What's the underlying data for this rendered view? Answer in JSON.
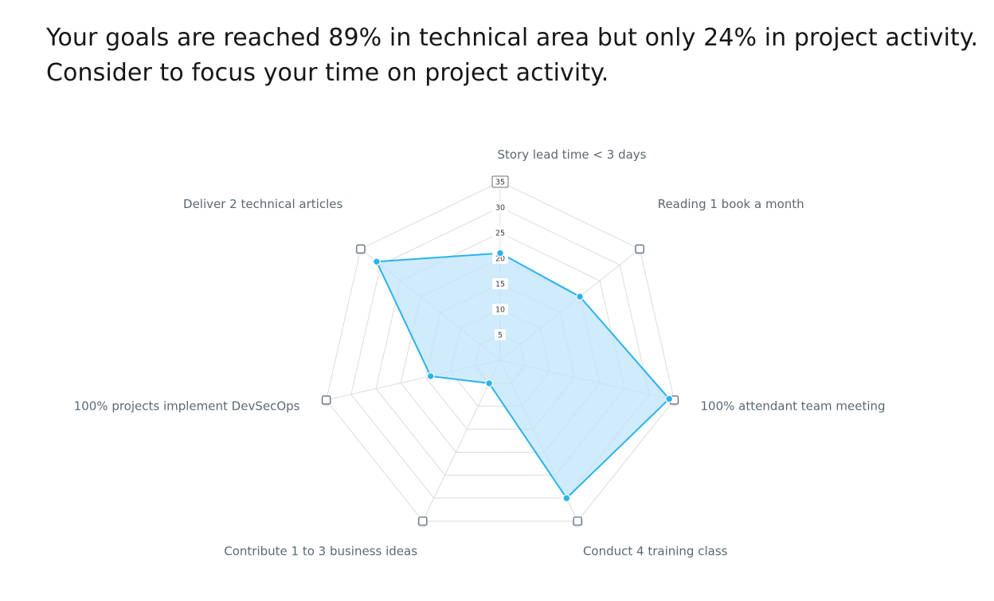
{
  "headline": {
    "line1": "Your goals are reached 89% in technical area but only 24% in project activity.",
    "line2": "Consider to focus your time on project activity."
  },
  "chart_data": {
    "type": "radar",
    "categories": [
      "Story lead time < 3 days",
      "Reading 1 book a month",
      "100% attendant team meeting",
      "Conduct 4 training class",
      "Contribute 1 to 3 business ideas",
      "100% projects implement DevSecOps",
      "Deliver 2 technical articles"
    ],
    "series": [
      {
        "values": [
          21,
          20,
          34,
          30,
          5,
          14,
          31
        ]
      }
    ],
    "rlim": [
      0,
      35
    ],
    "ticks": [
      5,
      10,
      15,
      20,
      25,
      30,
      35
    ],
    "tick_labels": [
      "5",
      "10",
      "15",
      "20",
      "25",
      "30",
      "35"
    ],
    "grid": true,
    "colors": {
      "series_stroke": "#2ab3ea",
      "series_fill": "#bfe4fb",
      "grid": "#dcdcdc",
      "label": "#5a6872"
    }
  }
}
